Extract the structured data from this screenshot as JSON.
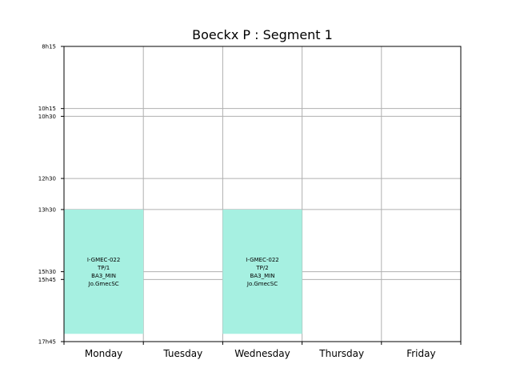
{
  "chart_data": {
    "type": "timetable",
    "title": "Boeckx P : Segment 1",
    "days": [
      "Monday",
      "Tuesday",
      "Wednesday",
      "Thursday",
      "Friday"
    ],
    "time_range_hours": [
      8.25,
      17.75
    ],
    "time_ticks": [
      {
        "label": "8h15",
        "hour": 8.25
      },
      {
        "label": "10h15",
        "hour": 10.25
      },
      {
        "label": "10h30",
        "hour": 10.5
      },
      {
        "label": "12h30",
        "hour": 12.5
      },
      {
        "label": "13h30",
        "hour": 13.5
      },
      {
        "label": "15h30",
        "hour": 15.5
      },
      {
        "label": "15h45",
        "hour": 15.75
      },
      {
        "label": "17h45",
        "hour": 17.75
      }
    ],
    "grid": true,
    "events": [
      {
        "day": "Monday",
        "start_hour": 13.5,
        "end_hour": 17.5,
        "lines": [
          "I-GMEC-022",
          "TP/1",
          "BA3_MIN",
          "Jo.GmecSC"
        ],
        "color": "#a6f0e1"
      },
      {
        "day": "Wednesday",
        "start_hour": 13.5,
        "end_hour": 17.5,
        "lines": [
          "I-GMEC-022",
          "TP/2",
          "BA3_MIN",
          "Jo.GmecSC"
        ],
        "color": "#a6f0e1"
      }
    ]
  },
  "colors": {
    "grid": "#b0b0b0",
    "axis": "#000000",
    "background": "#ffffff"
  }
}
